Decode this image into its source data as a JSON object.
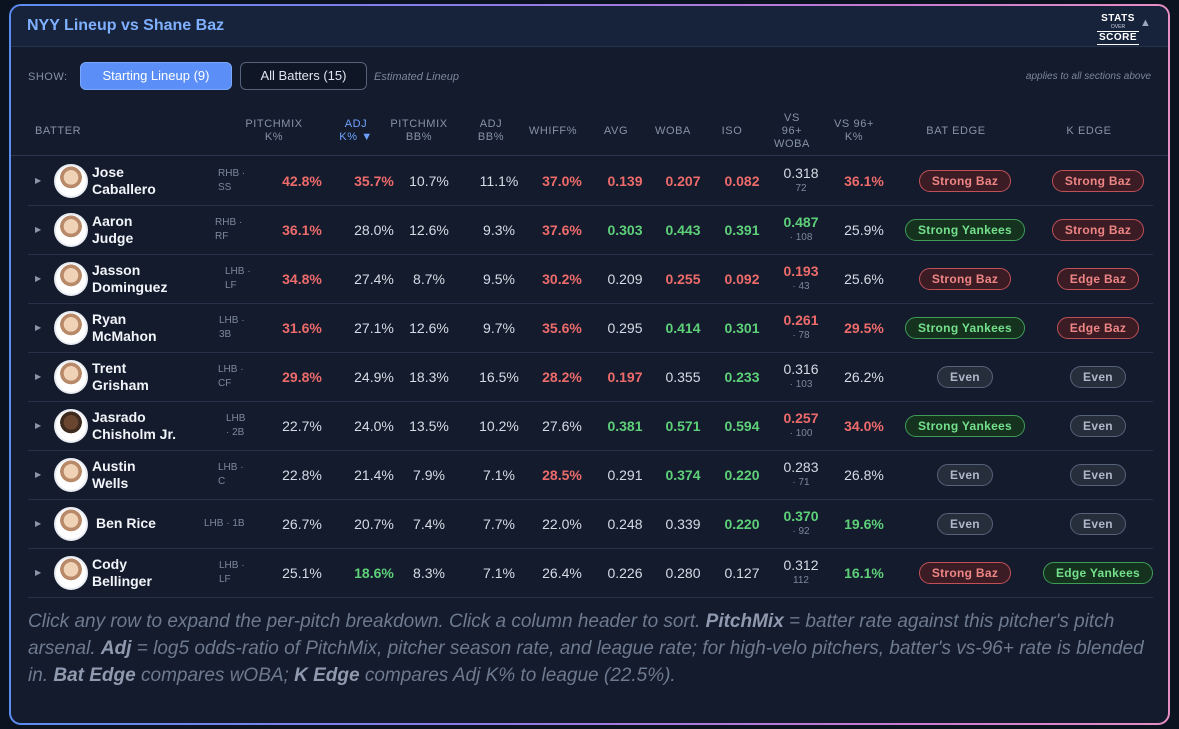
{
  "header": {
    "title": "NYY Lineup vs Shane Baz",
    "logo": [
      "STATS",
      "OVER",
      "SCORE"
    ],
    "collapse_glyph": "▲"
  },
  "controls": {
    "show_label": "SHOW:",
    "starting_label": "Starting Lineup (9)",
    "all_label": "All Batters (15)",
    "estimated": "Estimated Lineup",
    "applies": "applies to all sections above"
  },
  "columns": {
    "batter": "BATTER",
    "pm_k": [
      "PITCHMIX",
      "K%"
    ],
    "adj_k": [
      "ADJ",
      "K% ▼"
    ],
    "pm_bb": [
      "PITCHMIX",
      "BB%"
    ],
    "adj_bb": [
      "ADJ",
      "BB%"
    ],
    "whiff": "WHIFF%",
    "avg": "AVG",
    "woba": "WOBA",
    "iso": "ISO",
    "vs96woba": [
      "VS",
      "96+",
      "WOBA"
    ],
    "vs96k": [
      "VS 96+",
      "K%"
    ],
    "bat_edge": "BAT EDGE",
    "k_edge": "K EDGE"
  },
  "colors": {
    "accent": "#5b8ff7",
    "red": "#ee6b6b",
    "green": "#5ed07a",
    "title": "#7fb0ff"
  },
  "rows": [
    {
      "first": "Jose",
      "last": "Caballero",
      "hand": "RHB ·",
      "pos": "SS",
      "pm_k": "42.8%",
      "adj_k": "35.7%",
      "pm_bb": "10.7%",
      "adj_bb": "11.1%",
      "whiff": "37.0%",
      "avg": "0.139",
      "woba": "0.207",
      "iso": "0.082",
      "vs96woba": "0.318",
      "vs96n": "72",
      "vs96k": "36.1%",
      "bat_edge": "Strong Baz",
      "k_edge": "Strong Baz"
    },
    {
      "first": "Aaron",
      "last": "Judge",
      "hand": "RHB ·",
      "pos": "RF",
      "pm_k": "36.1%",
      "adj_k": "28.0%",
      "pm_bb": "12.6%",
      "adj_bb": "9.3%",
      "whiff": "37.6%",
      "avg": "0.303",
      "woba": "0.443",
      "iso": "0.391",
      "vs96woba": "0.487",
      "vs96n": "· 108",
      "vs96k": "25.9%",
      "bat_edge": "Strong Yankees",
      "k_edge": "Strong Baz"
    },
    {
      "first": "Jasson",
      "last": "Dominguez",
      "hand": "LHB ·",
      "pos": "LF",
      "pm_k": "34.8%",
      "adj_k": "27.4%",
      "pm_bb": "8.7%",
      "adj_bb": "9.5%",
      "whiff": "30.2%",
      "avg": "0.209",
      "woba": "0.255",
      "iso": "0.092",
      "vs96woba": "0.193",
      "vs96n": "· 43",
      "vs96k": "25.6%",
      "bat_edge": "Strong Baz",
      "k_edge": "Edge Baz"
    },
    {
      "first": "Ryan",
      "last": "McMahon",
      "hand": "LHB ·",
      "pos": "3B",
      "pm_k": "31.6%",
      "adj_k": "27.1%",
      "pm_bb": "12.6%",
      "adj_bb": "9.7%",
      "whiff": "35.6%",
      "avg": "0.295",
      "woba": "0.414",
      "iso": "0.301",
      "vs96woba": "0.261",
      "vs96n": "· 78",
      "vs96k": "29.5%",
      "bat_edge": "Strong Yankees",
      "k_edge": "Edge Baz"
    },
    {
      "first": "Trent",
      "last": "Grisham",
      "hand": "LHB ·",
      "pos": "CF",
      "pm_k": "29.8%",
      "adj_k": "24.9%",
      "pm_bb": "18.3%",
      "adj_bb": "16.5%",
      "whiff": "28.2%",
      "avg": "0.197",
      "woba": "0.355",
      "iso": "0.233",
      "vs96woba": "0.316",
      "vs96n": "· 103",
      "vs96k": "26.2%",
      "bat_edge": "Even",
      "k_edge": "Even"
    },
    {
      "first": "Jasrado",
      "last": "Chisholm Jr.",
      "hand": "LHB",
      "pos": "· 2B",
      "pm_k": "22.7%",
      "adj_k": "24.0%",
      "pm_bb": "13.5%",
      "adj_bb": "10.2%",
      "whiff": "27.6%",
      "avg": "0.381",
      "woba": "0.571",
      "iso": "0.594",
      "vs96woba": "0.257",
      "vs96n": "· 100",
      "vs96k": "34.0%",
      "bat_edge": "Strong Yankees",
      "k_edge": "Even"
    },
    {
      "first": "Austin",
      "last": "Wells",
      "hand": "LHB ·",
      "pos": "C",
      "pm_k": "22.8%",
      "adj_k": "21.4%",
      "pm_bb": "7.9%",
      "adj_bb": "7.1%",
      "whiff": "28.5%",
      "avg": "0.291",
      "woba": "0.374",
      "iso": "0.220",
      "vs96woba": "0.283",
      "vs96n": "· 71",
      "vs96k": "26.8%",
      "bat_edge": "Even",
      "k_edge": "Even"
    },
    {
      "first": "Ben Rice",
      "last": "",
      "hand": "LHB · 1B",
      "pos": "",
      "pm_k": "26.7%",
      "adj_k": "20.7%",
      "pm_bb": "7.4%",
      "adj_bb": "7.7%",
      "whiff": "22.0%",
      "avg": "0.248",
      "woba": "0.339",
      "iso": "0.220",
      "vs96woba": "0.370",
      "vs96n": "· 92",
      "vs96k": "19.6%",
      "bat_edge": "Even",
      "k_edge": "Even"
    },
    {
      "first": "Cody",
      "last": "Bellinger",
      "hand": "LHB ·",
      "pos": "LF",
      "pm_k": "25.1%",
      "adj_k": "18.6%",
      "pm_bb": "8.3%",
      "adj_bb": "7.1%",
      "whiff": "26.4%",
      "avg": "0.226",
      "woba": "0.280",
      "iso": "0.127",
      "vs96woba": "0.312",
      "vs96n": "112",
      "vs96k": "16.1%",
      "bat_edge": "Strong Baz",
      "k_edge": "Edge Yankees"
    }
  ],
  "footnote": {
    "p1": "Click any row to expand the per-pitch breakdown. Click a column header to sort. ",
    "b1": "PitchMix",
    "p2": " = batter rate against this pitcher's pitch arsenal. ",
    "b2": "Adj",
    "p3": " = log5 odds-ratio of PitchMix, pitcher season rate, and league rate; for high-velo pitchers, batter's vs-96+ rate is blended in. ",
    "b3": "Bat Edge",
    "p4": " compares wOBA; ",
    "b4": "K Edge",
    "p5": " compares Adj K% to league (22.5%)."
  }
}
